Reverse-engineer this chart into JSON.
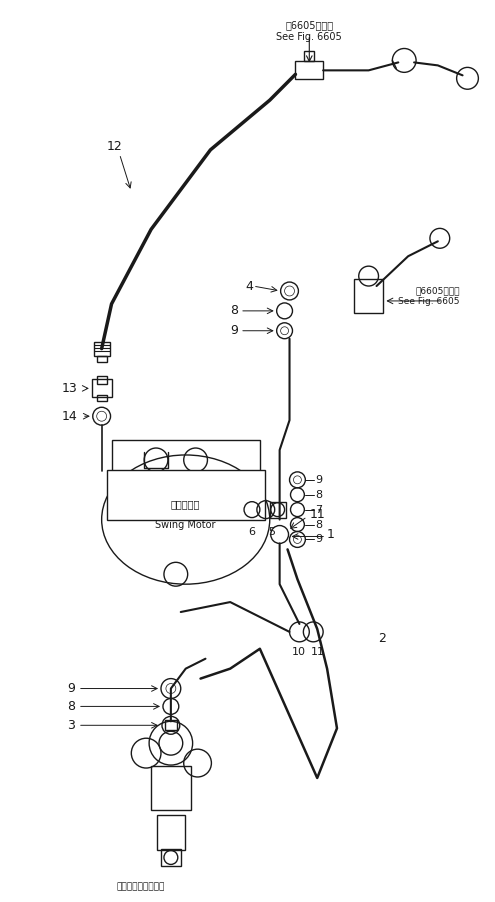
{
  "bg_color": "#ffffff",
  "line_color": "#1a1a1a",
  "fig_width": 4.95,
  "fig_height": 9.02,
  "top_label1": "第6605図参照\nSee Fig. 6605",
  "top_label2": "第6605図参照\nSee Fig. 6605",
  "motor_label1": "旋回モータ",
  "motor_label2": "Swing Motor",
  "swivel_label": "スイベルジョイント"
}
